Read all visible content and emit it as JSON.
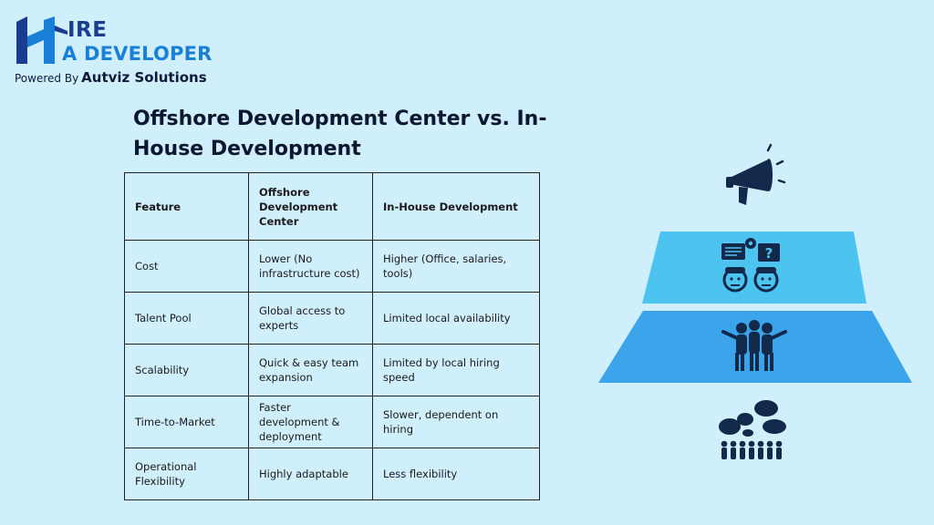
{
  "logo": {
    "line1": "IRE",
    "line2": "A DEVELOPER",
    "powered_by": "Powered By",
    "brand": "Autviz Solutions"
  },
  "title": "Offshore Development Center vs. In-House Development",
  "table": {
    "headers": [
      "Feature",
      "Offshore Development Center",
      "In-House Development"
    ],
    "rows": [
      [
        "Cost",
        "Lower (No infrastructure cost)",
        "Higher (Office, salaries, tools)"
      ],
      [
        "Talent Pool",
        "Global access to experts",
        "Limited local availability"
      ],
      [
        "Scalability",
        "Quick & easy team expansion",
        "Limited by local hiring speed"
      ],
      [
        "Time-to-Market",
        "Faster development & deployment",
        "Slower, dependent on hiring"
      ],
      [
        "Operational Flexibility",
        "Highly adaptable",
        "Less flexibility"
      ]
    ]
  },
  "graphic": {
    "top_tier_color": "#4dc3f0",
    "bottom_tier_color": "#3ba4ea",
    "icon_color": "#13294b",
    "icons": [
      "megaphone-icon",
      "team-discussion-icon",
      "group-hug-icon",
      "crowd-speech-icon"
    ]
  }
}
